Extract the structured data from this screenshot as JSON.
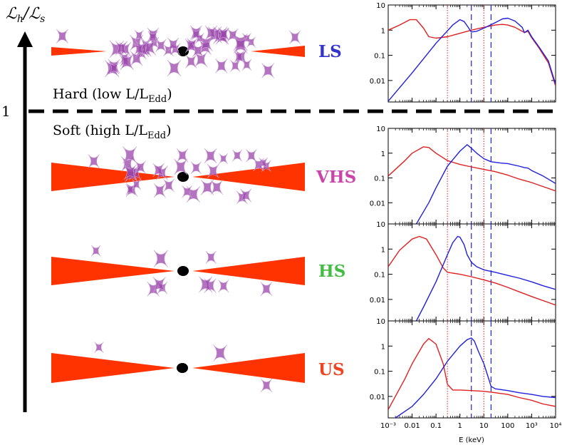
{
  "y_axis": {
    "label_main": "ℒ",
    "label_sub_h": "h",
    "label_slash": "/",
    "label_main2": "ℒ",
    "label_sub_s": "s",
    "threshold_value": "1"
  },
  "hard_label": {
    "text": "Hard (low L/L",
    "sub": "Edd",
    "close": ")"
  },
  "soft_label": {
    "text": "Soft (high L/L",
    "sub": "Edd",
    "close": ")"
  },
  "states": [
    {
      "code": "LS",
      "color": "#3333cc"
    },
    {
      "code": "VHS",
      "color": "#cc44aa"
    },
    {
      "code": "HS",
      "color": "#44bb44"
    },
    {
      "code": "US",
      "color": "#ee4422"
    }
  ],
  "colors": {
    "disk": "#ff3300",
    "corona": "#9944aa",
    "disk_spectrum": "#e02020",
    "comptonized_spectrum": "#2020dd"
  },
  "spectra_axis": {
    "xlabel": "E (keV)",
    "x_ticks": [
      "10⁻³",
      "0.01",
      "0.1",
      "1",
      "10",
      "100",
      "10³",
      "10⁴"
    ],
    "y_ticks": [
      "10",
      "1",
      "0.1",
      "0.01"
    ]
  },
  "chart_data": [
    {
      "type": "line",
      "state": "LS",
      "xscale": "log",
      "yscale": "log",
      "xlim": [
        0.001,
        10000
      ],
      "ylim": [
        0.0014,
        10
      ],
      "vlines_dotted": [
        0.3,
        10
      ],
      "vlines_dashed": [
        3,
        20
      ],
      "series": [
        {
          "key": "disk",
          "x": [
            0.001,
            0.003,
            0.008,
            0.015,
            0.03,
            0.05,
            0.1,
            0.3,
            1,
            3,
            10,
            30,
            60,
            100,
            200,
            400,
            500,
            700,
            1000,
            2000,
            5000,
            10000
          ],
          "y": [
            1.0,
            1.6,
            2.6,
            2.6,
            1.2,
            0.55,
            0.48,
            0.55,
            0.75,
            1.0,
            1.3,
            1.6,
            1.7,
            1.6,
            1.3,
            0.9,
            0.8,
            0.9,
            0.5,
            0.2,
            0.05,
            0.006
          ]
        },
        {
          "key": "comptonized",
          "x": [
            0.001,
            0.01,
            0.1,
            0.5,
            1,
            1.5,
            2,
            3,
            5,
            10,
            30,
            60,
            100,
            200,
            400,
            500,
            700,
            1000,
            2000,
            5000,
            10000
          ],
          "y": [
            0.0015,
            0.02,
            0.3,
            1.6,
            2.6,
            2.2,
            1.5,
            0.85,
            0.9,
            1.2,
            2.0,
            2.8,
            3.0,
            2.3,
            1.3,
            0.8,
            1.0,
            0.55,
            0.22,
            0.06,
            0.007
          ]
        }
      ]
    },
    {
      "type": "line",
      "state": "VHS",
      "xscale": "log",
      "yscale": "log",
      "xlim": [
        0.001,
        10000
      ],
      "ylim": [
        0.0014,
        10
      ],
      "vlines_dotted": [
        0.3,
        10
      ],
      "vlines_dashed": [
        3,
        20
      ],
      "series": [
        {
          "key": "disk",
          "x": [
            0.001,
            0.005,
            0.01,
            0.03,
            0.05,
            0.1,
            0.3,
            1,
            3,
            10,
            30,
            100,
            300,
            1000,
            3000,
            10000
          ],
          "y": [
            0.12,
            0.5,
            1.0,
            1.8,
            1.7,
            1.0,
            0.5,
            0.35,
            0.28,
            0.22,
            0.18,
            0.13,
            0.09,
            0.065,
            0.045,
            0.03
          ]
        },
        {
          "key": "comptonized",
          "x": [
            0.015,
            0.05,
            0.1,
            0.3,
            1,
            2,
            3,
            5,
            10,
            20,
            50,
            100,
            300,
            500,
            700,
            1000,
            3000,
            10000
          ],
          "y": [
            0.0014,
            0.01,
            0.04,
            0.3,
            1.2,
            2.2,
            1.6,
            1.0,
            0.6,
            0.45,
            0.4,
            0.38,
            0.3,
            0.26,
            0.25,
            0.2,
            0.12,
            0.06
          ]
        }
      ]
    },
    {
      "type": "line",
      "state": "HS",
      "xscale": "log",
      "yscale": "log",
      "xlim": [
        0.001,
        10000
      ],
      "ylim": [
        0.0014,
        10
      ],
      "vlines_dotted": [
        0.3,
        10
      ],
      "vlines_dashed": [
        3,
        20
      ],
      "series": [
        {
          "key": "disk",
          "x": [
            0.001,
            0.003,
            0.01,
            0.02,
            0.04,
            0.1,
            0.2,
            0.3,
            1,
            3,
            10,
            30,
            100,
            300,
            1000,
            3000,
            10000
          ],
          "y": [
            0.2,
            0.9,
            2.5,
            3.2,
            2.5,
            0.6,
            0.18,
            0.12,
            0.1,
            0.08,
            0.06,
            0.045,
            0.03,
            0.02,
            0.013,
            0.009,
            0.006
          ]
        },
        {
          "key": "comptonized",
          "x": [
            0.015,
            0.03,
            0.1,
            0.3,
            0.5,
            0.8,
            1,
            1.5,
            2,
            3,
            5,
            10,
            30,
            100,
            300,
            1000,
            3000,
            10000
          ],
          "y": [
            0.0014,
            0.005,
            0.05,
            0.6,
            1.8,
            3.2,
            3.0,
            1.5,
            0.6,
            0.3,
            0.2,
            0.15,
            0.12,
            0.09,
            0.07,
            0.05,
            0.035,
            0.025
          ]
        }
      ]
    },
    {
      "type": "line",
      "state": "US",
      "xscale": "log",
      "yscale": "log",
      "xlim": [
        0.001,
        10000
      ],
      "ylim": [
        0.0014,
        10
      ],
      "vlines_dotted": [
        0.3,
        10
      ],
      "vlines_dashed": [
        3,
        20
      ],
      "series": [
        {
          "key": "disk",
          "x": [
            0.001,
            0.005,
            0.01,
            0.03,
            0.05,
            0.1,
            0.2,
            0.3,
            0.5,
            1,
            3,
            10,
            30,
            100,
            300,
            1000,
            3000,
            10000
          ],
          "y": [
            0.003,
            0.05,
            0.2,
            1.2,
            2.0,
            1.2,
            0.2,
            0.03,
            0.018,
            0.018,
            0.017,
            0.016,
            0.014,
            0.012,
            0.009,
            0.007,
            0.005,
            0.004
          ]
        },
        {
          "key": "comptonized",
          "x": [
            0.002,
            0.01,
            0.03,
            0.1,
            0.3,
            1,
            2,
            3,
            4,
            6,
            10,
            15,
            20,
            30,
            100,
            300,
            1000,
            3000,
            10000
          ],
          "y": [
            0.0014,
            0.004,
            0.012,
            0.05,
            0.25,
            1.0,
            1.8,
            2.1,
            1.6,
            0.6,
            0.2,
            0.06,
            0.025,
            0.02,
            0.017,
            0.014,
            0.012,
            0.01,
            0.009
          ]
        }
      ]
    }
  ]
}
